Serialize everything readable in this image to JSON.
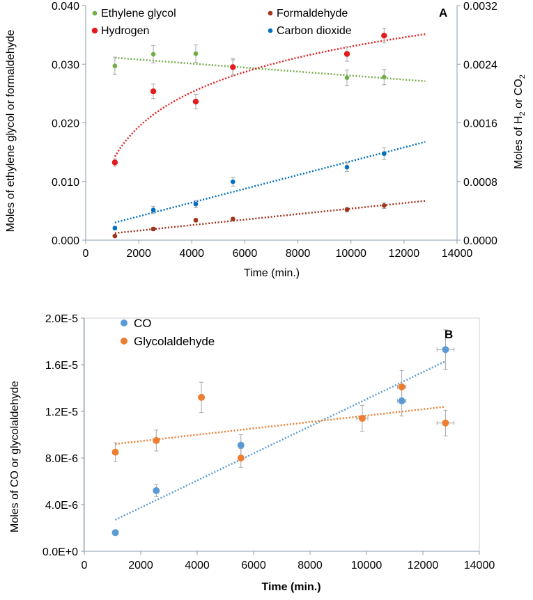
{
  "chart_data": [
    {
      "panel": "A",
      "type": "scatter",
      "xlabel": "Time (min.)",
      "ylabel_left": "Moles of ethylene glycol or formaldehyde",
      "ylabel_right_main": "Moles of H",
      "ylabel_right_sub": "2",
      "ylabel_right_mid": " or CO",
      "ylabel_right_sub2": "2",
      "xlim": [
        0,
        14000
      ],
      "ylim_left": [
        0,
        0.04
      ],
      "ylim_right": [
        0,
        0.0032
      ],
      "x_ticks": [
        "0",
        "2000",
        "4000",
        "6000",
        "8000",
        "10000",
        "12000",
        "14000"
      ],
      "y_left_ticks": [
        "0.000",
        "0.010",
        "0.020",
        "0.030",
        "0.040"
      ],
      "y_right_ticks": [
        "0.0000",
        "0.0008",
        "0.0016",
        "0.0024",
        "0.0032"
      ],
      "series": [
        {
          "name": "Ethylene glycol",
          "axis": "left",
          "color": "#70ad47",
          "x": [
            1100,
            2550,
            4150,
            5550,
            9850,
            11250
          ],
          "y": [
            0.0297,
            0.0317,
            0.0318,
            0.0295,
            0.0277,
            0.0278
          ],
          "err": [
            0.0015,
            0.0015,
            0.0015,
            0.0015,
            0.0013,
            0.0013
          ],
          "trend": {
            "kind": "linear",
            "from": [
              1100,
              0.0311
            ],
            "to": [
              12800,
              0.0271
            ]
          }
        },
        {
          "name": "Hydrogen",
          "axis": "right",
          "color": "#e41a1c",
          "x": [
            1100,
            2550,
            4150,
            5550,
            9850,
            11250
          ],
          "y": [
            0.00106,
            0.00203,
            0.00189,
            0.00236,
            0.00254,
            0.00279
          ],
          "err": [
            5e-05,
            0.0001,
            0.0001,
            0.0001,
            0.0001,
            0.0001
          ],
          "trend": {
            "kind": "log",
            "from": [
              1100,
              0.00114
            ],
            "to": [
              12800,
              0.00281
            ]
          }
        },
        {
          "name": "Formaldehyde",
          "axis": "left",
          "color": "#a0331a",
          "x": [
            1100,
            2550,
            4150,
            5550,
            9850,
            11250
          ],
          "y": [
            0.0007,
            0.0019,
            0.0034,
            0.0036,
            0.0052,
            0.0059
          ],
          "err": [
            0.0002,
            0.0003,
            0.0003,
            0.0003,
            0.0004,
            0.0005
          ],
          "trend": {
            "kind": "linear",
            "from": [
              1100,
              0.0012
            ],
            "to": [
              12800,
              0.0067
            ]
          }
        },
        {
          "name": "Carbon dioxide",
          "axis": "right",
          "color": "#0070c0",
          "x": [
            1100,
            2550,
            4150,
            5550,
            9850,
            11250
          ],
          "y": [
            0.000164,
            0.000412,
            0.000492,
            0.000797,
            0.000995,
            0.00118
          ],
          "err": [
            2e-05,
            5e-05,
            5e-05,
            6e-05,
            6e-05,
            8e-05
          ],
          "trend": {
            "kind": "linear",
            "from": [
              1100,
              0.00024
            ],
            "to": [
              12800,
              0.00134
            ]
          }
        }
      ],
      "legend": [
        {
          "name": "Ethylene glycol",
          "color": "#70ad47"
        },
        {
          "name": "Formaldehyde",
          "color": "#a0331a"
        },
        {
          "name": "Hydrogen",
          "color": "#e41a1c"
        },
        {
          "name": "Carbon dioxide",
          "color": "#0070c0"
        }
      ]
    },
    {
      "panel": "B",
      "type": "scatter",
      "xlabel": "Time (min.)",
      "ylabel": "Moles of CO or glycolaldehyde",
      "xlim": [
        0,
        14000
      ],
      "ylim": [
        0,
        2e-05
      ],
      "x_ticks": [
        "0",
        "2000",
        "4000",
        "6000",
        "8000",
        "10000",
        "12000",
        "14000"
      ],
      "y_ticks": [
        "0.0E+0",
        "4.0E-6",
        "8.0E-6",
        "1.2E-5",
        "1.6E-5",
        "2.0E-5"
      ],
      "series": [
        {
          "name": "CO",
          "color": "#5b9bd5",
          "x": [
            1100,
            2550,
            5550,
            11250,
            12800
          ],
          "y": [
            1.6e-06,
            5.2e-06,
            9.1e-06,
            1.29e-05,
            1.73e-05
          ],
          "err": [
            2e-07,
            5e-07,
            9e-07,
            1.3e-06,
            1.7e-06
          ],
          "xerr": [
            0,
            0,
            0,
            150,
            300
          ],
          "trend": {
            "kind": "linear",
            "from": [
              1100,
              2.7e-06
            ],
            "to": [
              12800,
              1.63e-05
            ]
          }
        },
        {
          "name": "Glycolaldehyde",
          "color": "#ed7d31",
          "x": [
            1100,
            2550,
            4150,
            5550,
            9850,
            11250,
            12800
          ],
          "y": [
            8.5e-06,
            9.5e-06,
            1.32e-05,
            8e-06,
            1.14e-05,
            1.41e-05,
            1.1e-05
          ],
          "err": [
            8e-07,
            9e-07,
            1.3e-06,
            8e-07,
            1.1e-06,
            1.4e-06,
            1.1e-06
          ],
          "xerr": [
            0,
            0,
            0,
            0,
            200,
            150,
            300
          ],
          "trend": {
            "kind": "linear",
            "from": [
              1100,
              9.2e-06
            ],
            "to": [
              12800,
              1.24e-05
            ]
          }
        }
      ],
      "legend": [
        {
          "name": "CO",
          "color": "#5b9bd5"
        },
        {
          "name": "Glycolaldehyde",
          "color": "#ed7d31"
        }
      ]
    }
  ]
}
